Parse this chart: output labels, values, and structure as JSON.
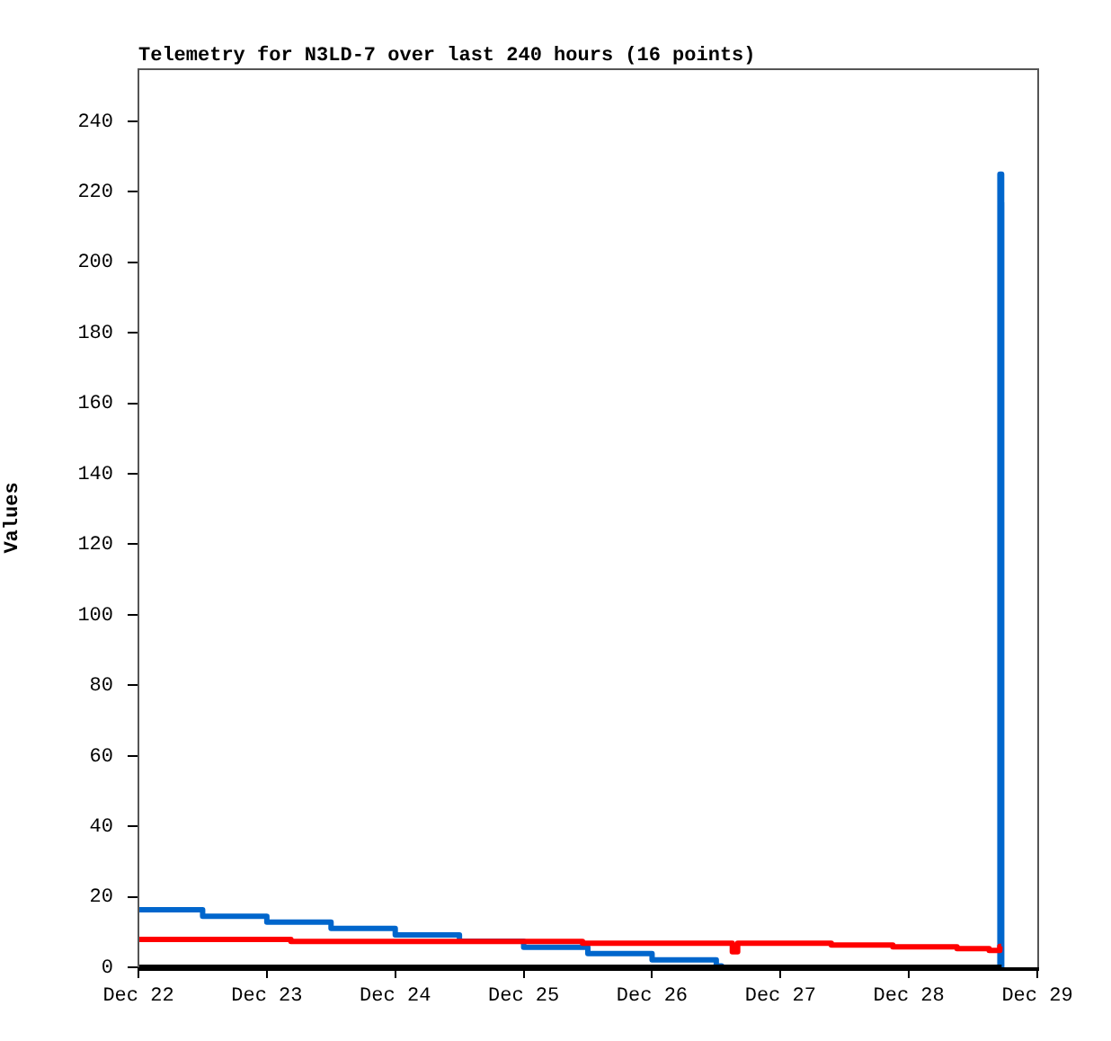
{
  "chart_data": {
    "type": "step",
    "title": "Telemetry for N3LD-7 over last 240 hours (16 points)",
    "ylabel": "Values",
    "xlim": [
      "--12-22",
      "--12-29"
    ],
    "xticks": [
      {
        "value": "--12-22",
        "label": "Dec 22"
      },
      {
        "value": "--12-23",
        "label": "Dec 23"
      },
      {
        "value": "--12-24",
        "label": "Dec 24"
      },
      {
        "value": "--12-25",
        "label": "Dec 25"
      },
      {
        "value": "--12-26",
        "label": "Dec 26"
      },
      {
        "value": "--12-27",
        "label": "Dec 27"
      },
      {
        "value": "--12-28",
        "label": "Dec 28"
      },
      {
        "value": "--12-29",
        "label": "Dec 29"
      }
    ],
    "ylim": [
      0,
      255
    ],
    "yticks": [
      0,
      20,
      40,
      60,
      80,
      100,
      120,
      140,
      160,
      180,
      200,
      220,
      240
    ],
    "grid": false,
    "legend": false,
    "series": [
      {
        "color": "#000000",
        "x": [
          "--12-22T00:00",
          "--12-28T17:20"
        ],
        "values": [
          0,
          0
        ]
      },
      {
        "color": "#ff0000",
        "x": [
          "--12-22T00:00",
          "--12-23T04:30",
          "--12-25T11:00",
          "--12-26T15:00",
          "--12-26T16:00",
          "--12-27T09:30",
          "--12-27T21:00",
          "--12-28T09:00",
          "--12-28T15:00",
          "--12-28T17:00",
          "--12-28T17:15"
        ],
        "values": [
          7.9,
          7.3,
          6.8,
          4.4,
          6.8,
          6.3,
          5.8,
          5.3,
          4.8,
          5.9,
          5.9
        ]
      },
      {
        "color": "#0066cc",
        "x": [
          "--12-22T00:00",
          "--12-22T12:00",
          "--12-23T00:00",
          "--12-23T12:00",
          "--12-24T00:00",
          "--12-24T12:00",
          "--12-25T00:00",
          "--12-25T12:00",
          "--12-26T00:00",
          "--12-26T12:00",
          "--12-26T13:00",
          "--12-28T17:00",
          "--12-28T17:01",
          "--12-28T17:20",
          "--12-28T17:21"
        ],
        "values": [
          16.3,
          14.5,
          12.8,
          11.0,
          9.2,
          7.4,
          5.7,
          3.9,
          2.1,
          0.4,
          0,
          0,
          225,
          217,
          0
        ]
      }
    ]
  }
}
